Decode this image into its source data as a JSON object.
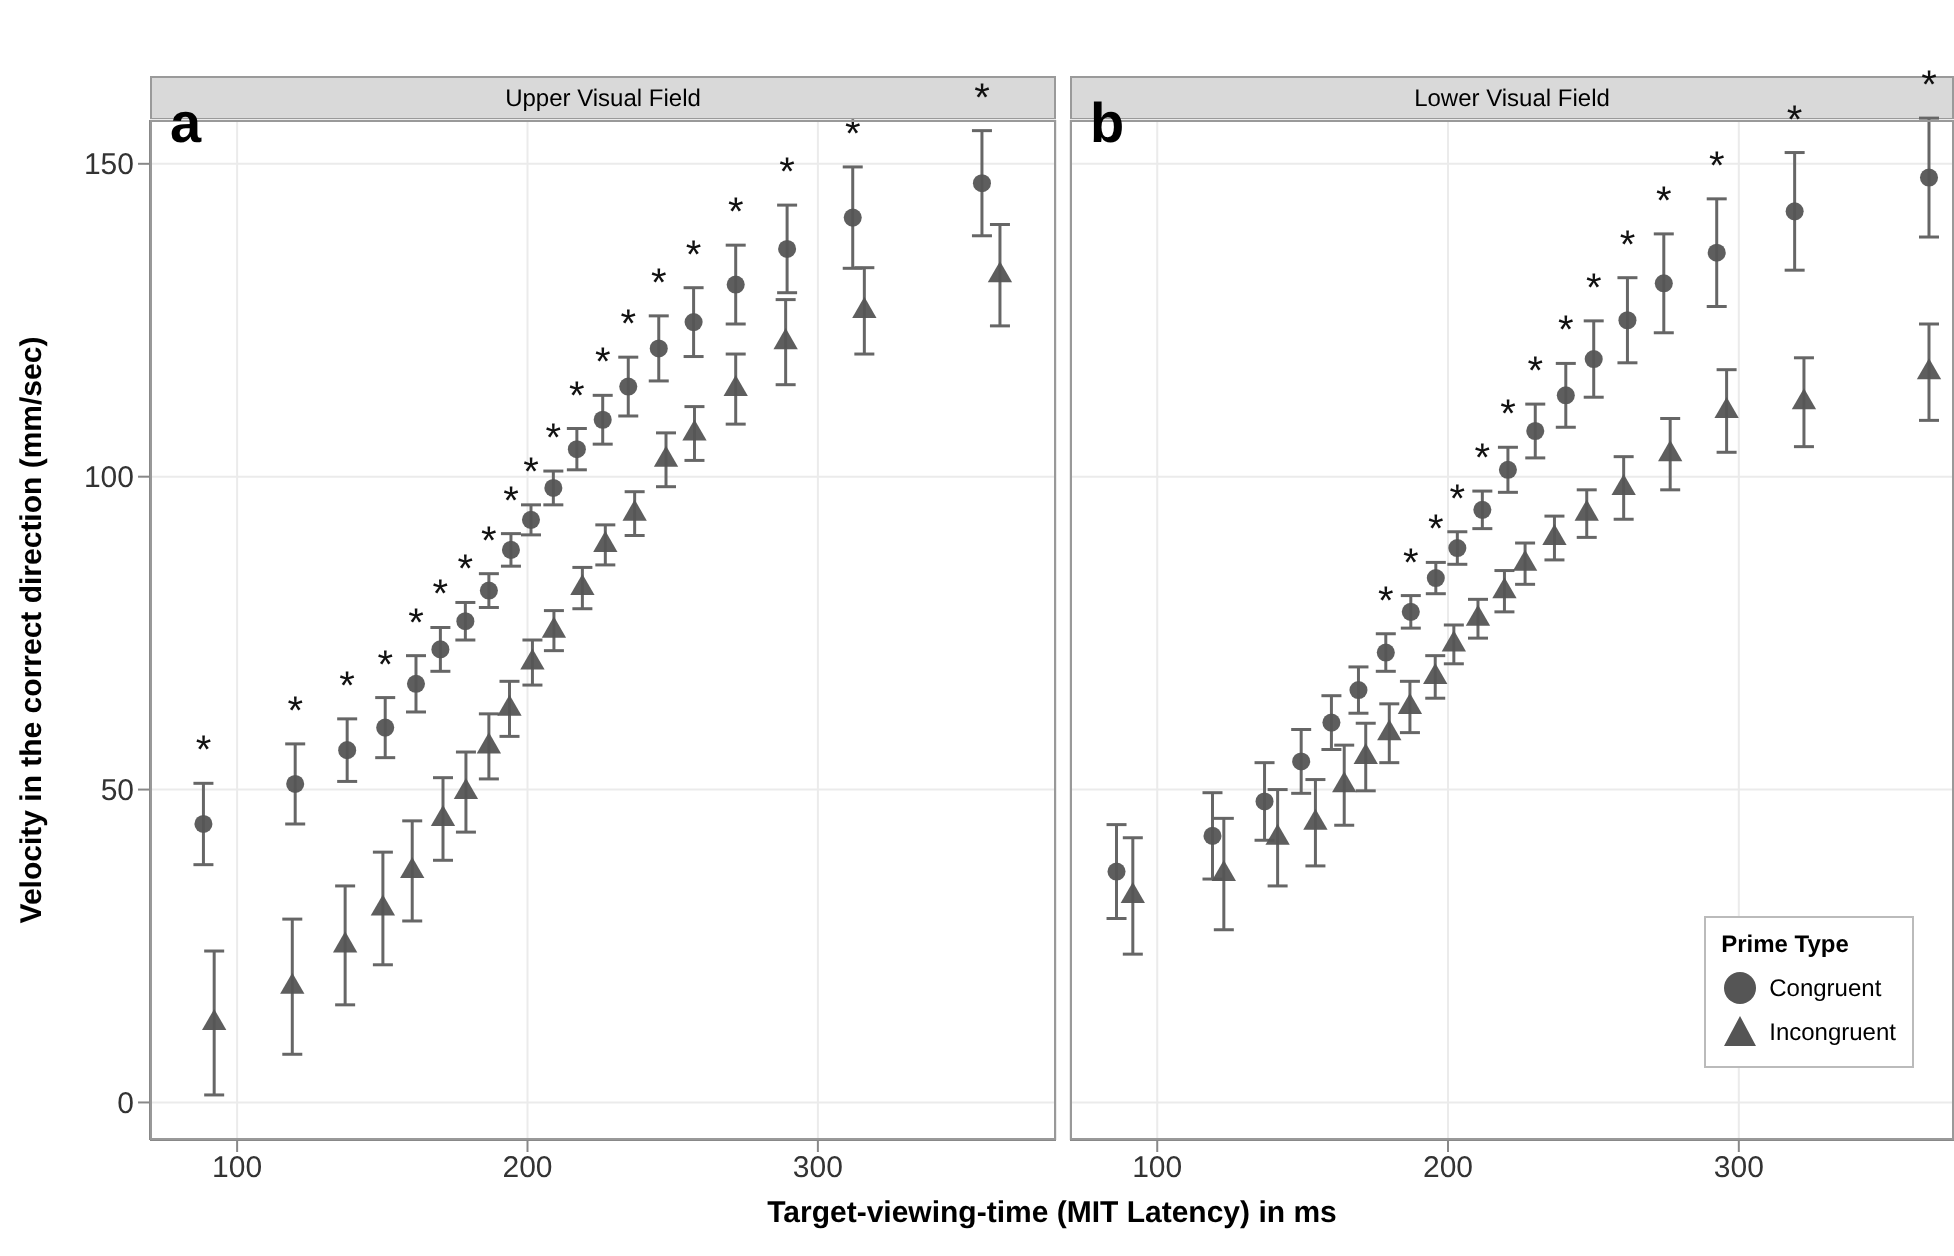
{
  "chart_data": [
    {
      "type": "scatter",
      "title": "Upper Visual Field",
      "ylabel": "Velocity in the correct direction (mm/sec)",
      "xlim": [
        70,
        382
      ],
      "xticks": [
        100,
        200,
        300
      ],
      "ylim": [
        -6,
        157
      ],
      "yticks": [
        0,
        50,
        100,
        150
      ],
      "grid": true,
      "legend": false,
      "series": [
        {
          "color": "#555555",
          "marker": "circle",
          "x": [
            88.4,
            120,
            137.9,
            151,
            161.6,
            170,
            178.6,
            186.7,
            194.3,
            201.2,
            208.9,
            217,
            225.9,
            234.7,
            245.2,
            257.2,
            271.7,
            289.4,
            312,
            356.5
          ],
          "values": [
            44.5,
            50.9,
            56.3,
            59.9,
            66.9,
            72.4,
            76.9,
            81.8,
            88.3,
            93.1,
            98.2,
            104.4,
            109.1,
            114.4,
            120.5,
            124.7,
            130.7,
            136.4,
            141.4,
            146.9
          ],
          "errors": [
            6.5,
            6.4,
            5,
            4.8,
            4.5,
            3.5,
            3,
            2.7,
            2.6,
            2.4,
            2.7,
            3.3,
            3.9,
            4.7,
            5.2,
            5.5,
            6.3,
            7,
            8.1,
            8.4
          ]
        },
        {
          "color": "#555555",
          "marker": "triangle",
          "x": [
            92.1,
            119,
            137.2,
            150.2,
            160.3,
            170.9,
            178.8,
            186.7,
            193.8,
            201.7,
            209.1,
            218.9,
            226.8,
            236.9,
            247.7,
            257.5,
            271.7,
            288.9,
            316,
            362.7
          ],
          "values": [
            12.7,
            18.5,
            25.1,
            31,
            37,
            45.3,
            49.6,
            56.9,
            62.9,
            70.3,
            75.4,
            82.2,
            89.1,
            94.1,
            102.7,
            106.9,
            114,
            121.5,
            126.5,
            132.2
          ],
          "errors": [
            11.5,
            10.8,
            9.5,
            9,
            8,
            6.6,
            6.4,
            5.2,
            4.4,
            3.6,
            3.2,
            3.3,
            3.2,
            3.5,
            4.3,
            4.3,
            5.6,
            6.8,
            6.9,
            8.1
          ]
        }
      ],
      "annotations": [
        "a",
        {
          "text": "*",
          "x": 88.4,
          "y": 44.5
        },
        {
          "text": "*",
          "x": 120,
          "y": 50.9
        },
        {
          "text": "*",
          "x": 137.9,
          "y": 56.3
        },
        {
          "text": "*",
          "x": 151,
          "y": 59.9
        },
        {
          "text": "*",
          "x": 161.6,
          "y": 66.9
        },
        {
          "text": "*",
          "x": 170,
          "y": 72.4
        },
        {
          "text": "*",
          "x": 178.6,
          "y": 76.9
        },
        {
          "text": "*",
          "x": 186.7,
          "y": 81.8
        },
        {
          "text": "*",
          "x": 194.3,
          "y": 88.3
        },
        {
          "text": "*",
          "x": 201.2,
          "y": 93.1
        },
        {
          "text": "*",
          "x": 208.9,
          "y": 98.2
        },
        {
          "text": "*",
          "x": 217,
          "y": 104.4
        },
        {
          "text": "*",
          "x": 225.9,
          "y": 109.1
        },
        {
          "text": "*",
          "x": 234.7,
          "y": 114.4
        },
        {
          "text": "*",
          "x": 245.2,
          "y": 120.5
        },
        {
          "text": "*",
          "x": 257.2,
          "y": 124.7
        },
        {
          "text": "*",
          "x": 271.7,
          "y": 130.7
        },
        {
          "text": "*",
          "x": 289.4,
          "y": 136.4
        },
        {
          "text": "*",
          "x": 312,
          "y": 141.4
        },
        {
          "text": "*",
          "x": 356.5,
          "y": 146.9
        }
      ]
    },
    {
      "type": "scatter",
      "title": "Lower Visual Field",
      "xlabel": "Target-viewing-time (MIT Latency) in ms",
      "xlim": [
        70,
        374
      ],
      "xticks": [
        100,
        200,
        300
      ],
      "ylim": [
        -6,
        157
      ],
      "yticks": [
        0,
        50,
        100,
        150
      ],
      "tick_labels": "x",
      "grid": true,
      "legend": "bottom right",
      "legend_title": "Prime Type",
      "series": [
        {
          "name": "Congruent",
          "color": "#555555",
          "marker": "circle",
          "x": [
            86,
            119,
            136.9,
            149.5,
            159.9,
            169.2,
            178.6,
            187.2,
            195.8,
            203.2,
            211.8,
            220.6,
            230,
            240.5,
            250.1,
            261.7,
            274.2,
            292.4,
            319.2,
            365.4
          ],
          "values": [
            36.9,
            42.6,
            48.1,
            54.5,
            60.7,
            65.9,
            71.9,
            78.4,
            83.8,
            88.6,
            94.7,
            101.1,
            107.3,
            113,
            118.8,
            125,
            130.9,
            135.8,
            142.4,
            147.8
          ],
          "errors": [
            7.5,
            6.9,
            6.2,
            5.1,
            4.3,
            3.7,
            3,
            2.6,
            2.5,
            2.6,
            3,
            3.6,
            4.3,
            5.1,
            6.1,
            6.8,
            7.9,
            8.6,
            9.4,
            9.5
          ]
        },
        {
          "name": "Incongruent",
          "color": "#555555",
          "marker": "triangle",
          "x": [
            91.6,
            122.9,
            141.4,
            154.4,
            164.3,
            171.7,
            179.8,
            186.9,
            195.6,
            202,
            210.3,
            219.4,
            226.5,
            236.6,
            247.7,
            260.4,
            276.4,
            295.8,
            322.4,
            365.4
          ],
          "values": [
            33,
            36.5,
            42.3,
            44.7,
            50.7,
            55.2,
            59,
            63.2,
            68,
            73.2,
            77.3,
            81.7,
            86.1,
            90.2,
            94.1,
            98.2,
            103.6,
            110.5,
            111.9,
            116.7
          ],
          "errors": [
            9.3,
            8.9,
            7.7,
            6.9,
            6.4,
            5.4,
            4.7,
            4.1,
            3.4,
            3.1,
            3.1,
            3.3,
            3.3,
            3.5,
            3.8,
            5,
            5.7,
            6.6,
            7.1,
            7.7
          ]
        }
      ],
      "annotations": [
        "b",
        {
          "text": "*",
          "x": 178.6,
          "y": 71.9
        },
        {
          "text": "*",
          "x": 187.2,
          "y": 78.4
        },
        {
          "text": "*",
          "x": 195.8,
          "y": 83.8
        },
        {
          "text": "*",
          "x": 203.2,
          "y": 88.6
        },
        {
          "text": "*",
          "x": 211.8,
          "y": 94.7
        },
        {
          "text": "*",
          "x": 220.6,
          "y": 101.1
        },
        {
          "text": "*",
          "x": 230,
          "y": 107.3
        },
        {
          "text": "*",
          "x": 240.5,
          "y": 113
        },
        {
          "text": "*",
          "x": 250.1,
          "y": 118.8
        },
        {
          "text": "*",
          "x": 261.7,
          "y": 125
        },
        {
          "text": "*",
          "x": 274.2,
          "y": 130.9
        },
        {
          "text": "*",
          "x": 292.4,
          "y": 135.8
        },
        {
          "text": "*",
          "x": 319.2,
          "y": 142.4
        },
        {
          "text": "*",
          "x": 365.4,
          "y": 147.8
        }
      ]
    }
  ]
}
